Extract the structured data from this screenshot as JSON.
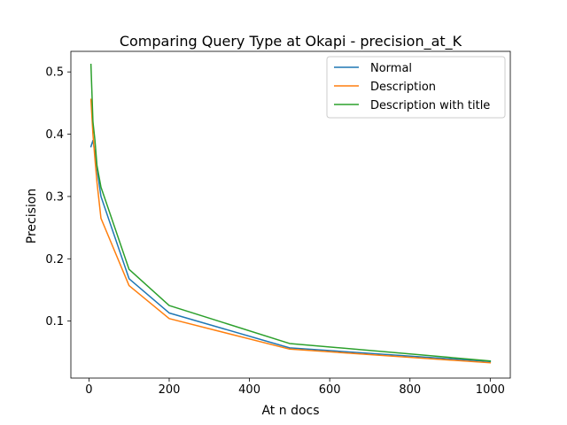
{
  "chart_data": {
    "type": "line",
    "title": "Comparing Query Type at Okapi - precision_at_K",
    "xlabel": "At n docs",
    "ylabel": "Precision",
    "xlim": [
      -45,
      1050
    ],
    "ylim": [
      0.0085,
      0.533
    ],
    "xticks": [
      0,
      200,
      400,
      600,
      800,
      1000
    ],
    "yticks": [
      0.1,
      0.2,
      0.3,
      0.4,
      0.5
    ],
    "xtick_labels": [
      "0",
      "200",
      "400",
      "600",
      "800",
      "1000"
    ],
    "ytick_labels": [
      "0.1",
      "0.2",
      "0.3",
      "0.4",
      "0.5"
    ],
    "grid": false,
    "legend_position": "top-right",
    "x": [
      5,
      10,
      15,
      20,
      30,
      100,
      200,
      500,
      1000
    ],
    "series": [
      {
        "name": "Normal",
        "color": "#1f77b4",
        "values": [
          0.38,
          0.39,
          0.37,
          0.345,
          0.3,
          0.168,
          0.113,
          0.057,
          0.035
        ]
      },
      {
        "name": "Description",
        "color": "#ff7f0e",
        "values": [
          0.456,
          0.4,
          0.36,
          0.323,
          0.265,
          0.157,
          0.104,
          0.055,
          0.033
        ]
      },
      {
        "name": "Description with title",
        "color": "#2ca02c",
        "values": [
          0.512,
          0.42,
          0.39,
          0.35,
          0.315,
          0.183,
          0.125,
          0.064,
          0.036
        ]
      }
    ]
  }
}
